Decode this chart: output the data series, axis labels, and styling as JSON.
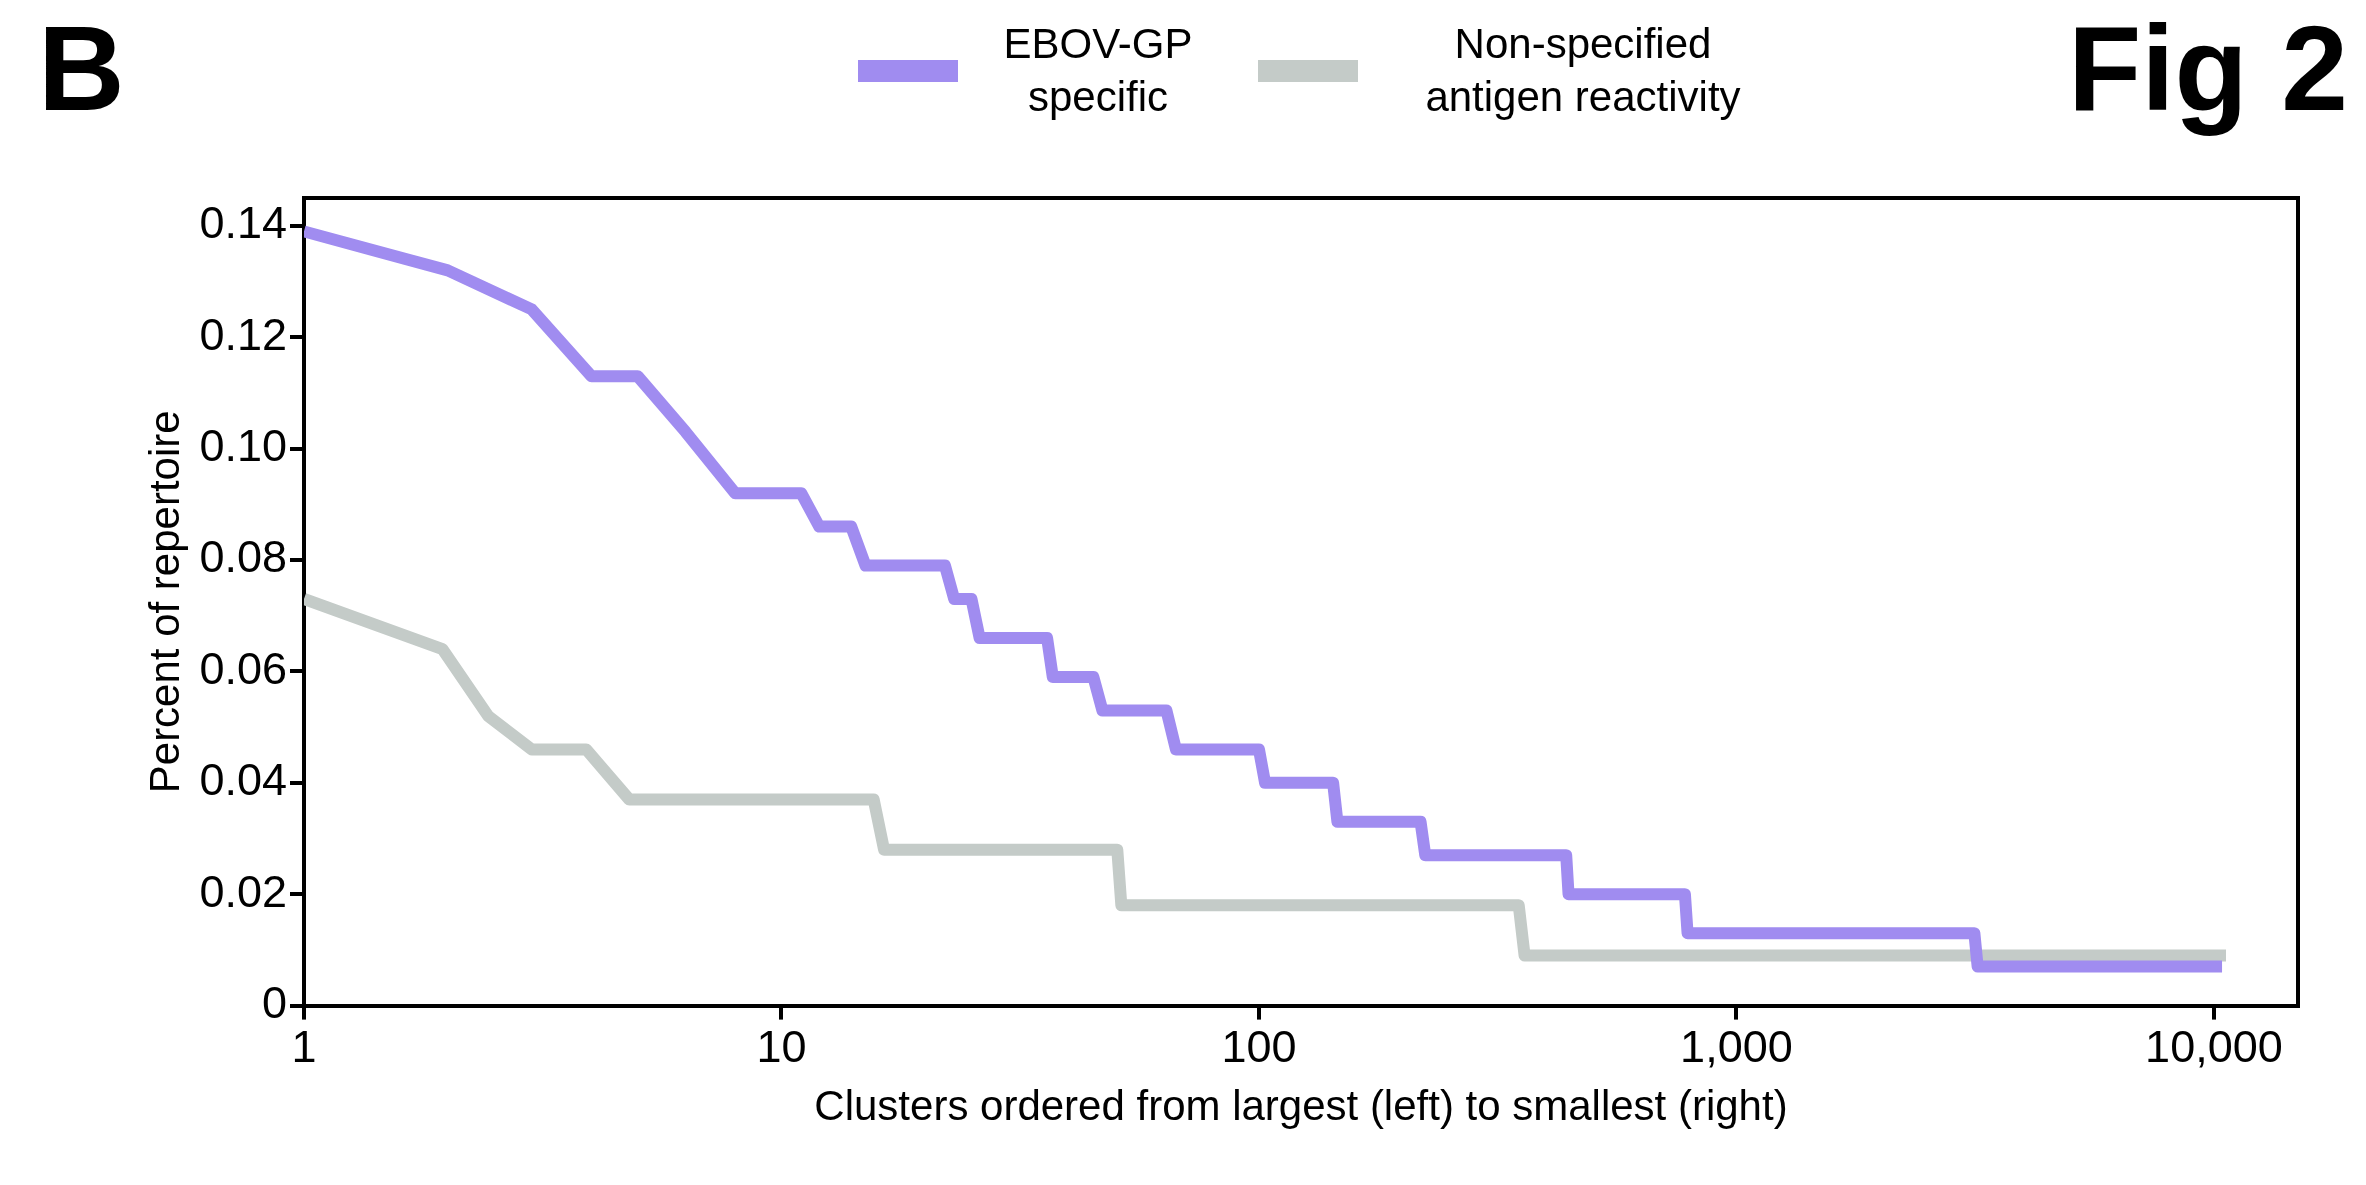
{
  "chart_data": {
    "type": "line",
    "annotations": [
      "B",
      "Fig 2"
    ],
    "xlabel": "Clusters ordered from largest (left) to smallest (right)",
    "ylabel": "Percent of repertoire",
    "log": "x",
    "legend": "top",
    "grid": false,
    "marker": "none",
    "line_style": "solid",
    "xlim": [
      1,
      15000
    ],
    "xticks": [
      1,
      10,
      100,
      {
        "value": 1000,
        "label": "1,000"
      },
      {
        "value": 10000,
        "label": "10,000"
      }
    ],
    "ylim": [
      0,
      0.145
    ],
    "yticks": [
      0,
      0.02,
      0.04,
      0.06,
      0.08,
      {
        "value": 0.1,
        "label": "0.10"
      },
      0.12,
      0.14
    ],
    "series": [
      {
        "name": "EBOV-GP specific",
        "color": "#a08cf0",
        "x": [
          1,
          2,
          3,
          4,
          5,
          6.3,
          8,
          11,
          12,
          14,
          15,
          22,
          23,
          25,
          26,
          36,
          37,
          45,
          47,
          64,
          67,
          100,
          103,
          143,
          146,
          218,
          223,
          440,
          445,
          780,
          790,
          3150,
          3200,
          10400
        ],
        "values": [
          0.139,
          0.132,
          0.125,
          0.113,
          0.113,
          0.103,
          0.092,
          0.092,
          0.086,
          0.086,
          0.079,
          0.079,
          0.073,
          0.073,
          0.066,
          0.066,
          0.059,
          0.059,
          0.053,
          0.053,
          0.046,
          0.046,
          0.04,
          0.04,
          0.033,
          0.033,
          0.027,
          0.027,
          0.02,
          0.02,
          0.013,
          0.013,
          0.007,
          0.007
        ]
      },
      {
        "name": "Non-specified antigen reactivity",
        "color": "#c4cbc8",
        "x": [
          1,
          1.95,
          2.43,
          3,
          3.9,
          4.8,
          15.6,
          16.4,
          50.5,
          51.5,
          350,
          360,
          10600
        ],
        "values": [
          0.073,
          0.064,
          0.052,
          0.046,
          0.046,
          0.037,
          0.037,
          0.028,
          0.028,
          0.018,
          0.018,
          0.009,
          0.009
        ]
      }
    ]
  }
}
